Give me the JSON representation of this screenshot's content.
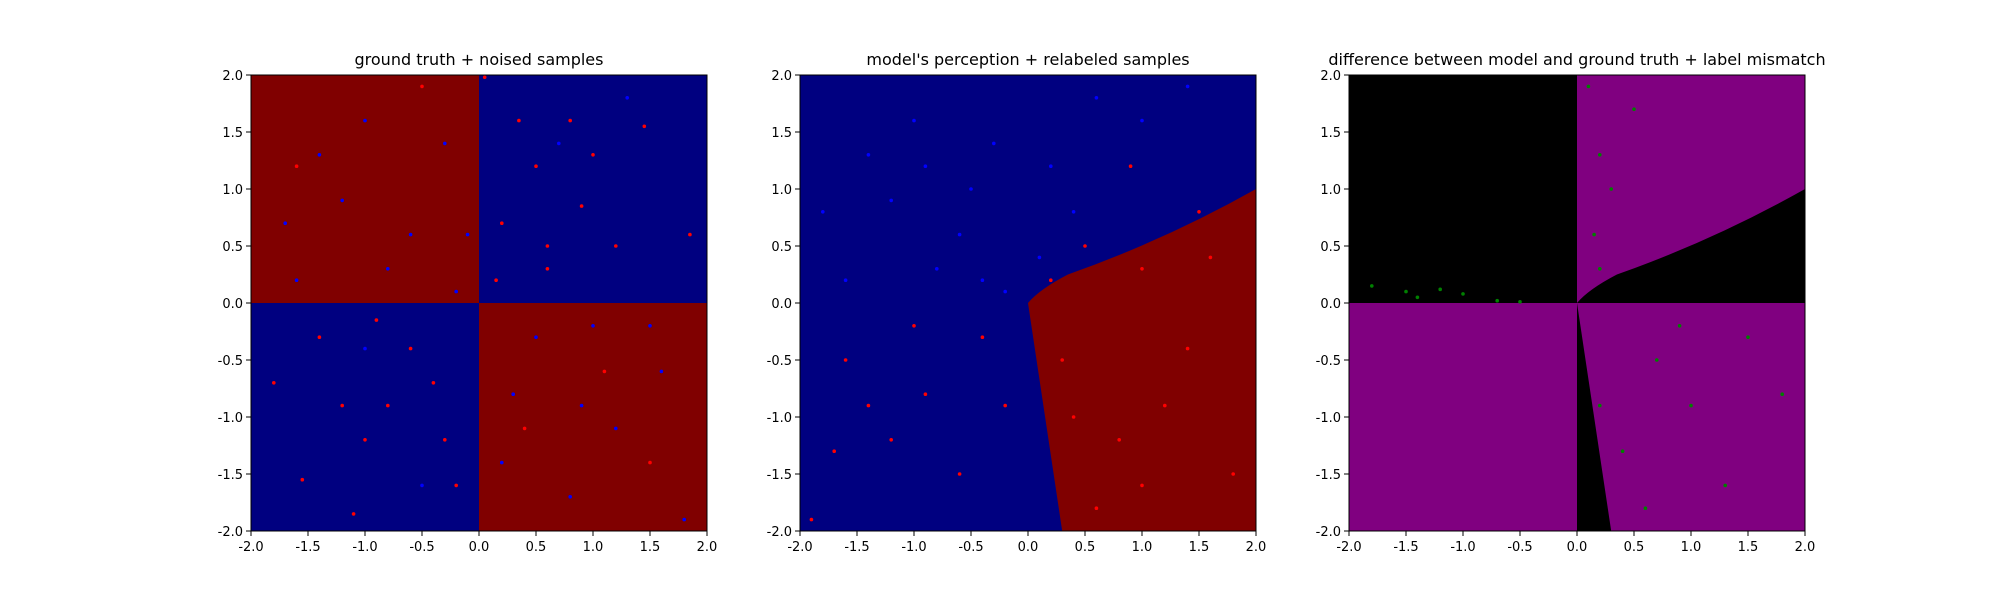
{
  "chart_data": [
    {
      "type": "scatter",
      "title": "ground truth + noised samples",
      "xlim": [
        -2.0,
        2.0
      ],
      "ylim": [
        -2.0,
        2.0
      ],
      "xticks": [
        "-2.0",
        "-1.5",
        "-1.0",
        "-0.5",
        "0.0",
        "0.5",
        "1.0",
        "1.5",
        "2.0"
      ],
      "yticks": [
        "2.0",
        "1.5",
        "1.0",
        "0.5",
        "0.0",
        "-0.5",
        "-1.0",
        "-1.5",
        "-2.0"
      ],
      "background": "ground-truth XOR regions: red where x·y > 0, navy where x·y < 0",
      "region_colors": {
        "positive": "#800000",
        "negative": "#000080"
      },
      "point_colors": {
        "red": "#ff0000",
        "blue": "#0000ff"
      },
      "points": {
        "red": [
          [
            0.05,
            1.98
          ],
          [
            0.5,
            1.2
          ],
          [
            0.8,
            1.6
          ],
          [
            1.45,
            1.55
          ],
          [
            0.2,
            0.7
          ],
          [
            1.2,
            0.5
          ],
          [
            1.85,
            0.6
          ],
          [
            0.6,
            0.3
          ],
          [
            0.9,
            0.85
          ],
          [
            0.35,
            1.6
          ],
          [
            -1.55,
            -1.55
          ],
          [
            -0.8,
            -0.9
          ],
          [
            -1.4,
            -0.3
          ],
          [
            -0.3,
            -1.2
          ],
          [
            -1.1,
            -1.85
          ],
          [
            -0.6,
            -0.4
          ],
          [
            -1.8,
            -0.7
          ],
          [
            -0.2,
            -1.6
          ],
          [
            -1.0,
            -1.2
          ],
          [
            -0.9,
            -0.15
          ],
          [
            -0.5,
            1.9
          ],
          [
            -1.6,
            1.2
          ],
          [
            1.1,
            -0.6
          ],
          [
            0.4,
            -1.1
          ],
          [
            1.5,
            -1.4
          ],
          [
            0.6,
            0.5
          ],
          [
            1.0,
            1.3
          ],
          [
            0.15,
            0.2
          ],
          [
            -1.2,
            -0.9
          ],
          [
            -0.4,
            -0.7
          ]
        ],
        "blue": [
          [
            -1.2,
            0.9
          ],
          [
            -0.8,
            0.3
          ],
          [
            -0.3,
            1.4
          ],
          [
            -1.6,
            0.2
          ],
          [
            -0.6,
            0.6
          ],
          [
            -1.0,
            1.6
          ],
          [
            -0.2,
            0.1
          ],
          [
            -1.4,
            1.3
          ],
          [
            0.5,
            -0.3
          ],
          [
            1.2,
            -1.1
          ],
          [
            0.8,
            -1.7
          ],
          [
            1.6,
            -0.6
          ],
          [
            0.3,
            -0.8
          ],
          [
            1.0,
            -0.2
          ],
          [
            1.8,
            -1.9
          ],
          [
            0.2,
            -1.4
          ],
          [
            0.7,
            1.4
          ],
          [
            -1.0,
            -0.4
          ],
          [
            1.3,
            1.8
          ],
          [
            -0.5,
            -1.6
          ],
          [
            -0.1,
            0.6
          ],
          [
            0.9,
            -0.9
          ],
          [
            -1.7,
            0.7
          ],
          [
            1.5,
            -0.2
          ]
        ]
      }
    },
    {
      "type": "scatter",
      "title": "model's perception + relabeled samples",
      "xlim": [
        -2.0,
        2.0
      ],
      "ylim": [
        -2.0,
        2.0
      ],
      "xticks": [
        "-2.0",
        "-1.5",
        "-1.0",
        "-0.5",
        "0.0",
        "0.5",
        "1.0",
        "1.5",
        "2.0"
      ],
      "yticks": [
        "2.0",
        "1.5",
        "1.0",
        "0.5",
        "0.0",
        "-0.5",
        "-1.0",
        "-1.5",
        "-2.0"
      ],
      "background": "model prediction: red region bounded by curve through (0.0, 0.0), (0.3, -2.0) and (2.0, 1.0); navy elsewhere",
      "region_colors": {
        "positive": "#800000",
        "negative": "#000080"
      },
      "point_colors": {
        "red": "#ff0000",
        "blue": "#0000ff"
      },
      "points": {
        "red": [
          [
            0.5,
            0.5
          ],
          [
            1.0,
            0.3
          ],
          [
            1.5,
            0.8
          ],
          [
            0.3,
            -0.5
          ],
          [
            0.8,
            -1.2
          ],
          [
            1.4,
            -0.4
          ],
          [
            1.8,
            -1.5
          ],
          [
            0.6,
            -1.8
          ],
          [
            1.2,
            -0.9
          ],
          [
            0.2,
            0.2
          ],
          [
            -1.6,
            -0.5
          ],
          [
            -0.9,
            -0.8
          ],
          [
            -0.4,
            -0.3
          ],
          [
            -1.2,
            -1.2
          ],
          [
            -0.6,
            -1.5
          ],
          [
            -1.9,
            -1.9
          ],
          [
            -1.0,
            -0.2
          ],
          [
            -1.4,
            -0.9
          ],
          [
            0.9,
            1.2
          ],
          [
            1.6,
            0.4
          ],
          [
            0.4,
            -1.0
          ],
          [
            1.0,
            -1.6
          ],
          [
            -0.2,
            -0.9
          ],
          [
            -1.7,
            -1.3
          ]
        ],
        "blue": [
          [
            -1.2,
            0.9
          ],
          [
            -0.8,
            0.3
          ],
          [
            -0.3,
            1.4
          ],
          [
            -1.6,
            0.2
          ],
          [
            -0.6,
            0.6
          ],
          [
            -1.0,
            1.6
          ],
          [
            -0.2,
            0.1
          ],
          [
            -1.4,
            1.3
          ],
          [
            0.2,
            1.2
          ],
          [
            0.6,
            1.8
          ],
          [
            1.0,
            1.6
          ],
          [
            -0.5,
            1.0
          ],
          [
            -1.8,
            0.8
          ],
          [
            0.4,
            0.8
          ],
          [
            -0.9,
            1.2
          ],
          [
            0.1,
            0.4
          ],
          [
            1.4,
            1.9
          ],
          [
            -0.4,
            0.2
          ]
        ]
      }
    },
    {
      "type": "scatter",
      "title": "difference between model and ground truth + label mismatch",
      "xlim": [
        -2.0,
        2.0
      ],
      "ylim": [
        -2.0,
        2.0
      ],
      "xticks": [
        "-2.0",
        "-1.5",
        "-1.0",
        "-0.5",
        "0.0",
        "0.5",
        "1.0",
        "1.5",
        "2.0"
      ],
      "yticks": [
        "2.0",
        "1.5",
        "1.0",
        "0.5",
        "0.0",
        "-0.5",
        "-1.0",
        "-1.5",
        "-2.0"
      ],
      "background": "purple where model and ground truth disagree, black where they agree",
      "region_colors": {
        "mismatch": "#800080",
        "match": "#000000"
      },
      "point_colors": {
        "green": "#008000"
      },
      "points": {
        "green": [
          [
            0.1,
            1.9
          ],
          [
            0.2,
            1.3
          ],
          [
            0.15,
            0.6
          ],
          [
            0.3,
            1.0
          ],
          [
            0.5,
            1.7
          ],
          [
            0.2,
            0.3
          ],
          [
            0.7,
            -0.5
          ],
          [
            1.0,
            -0.9
          ],
          [
            1.5,
            -0.3
          ],
          [
            0.4,
            -1.3
          ],
          [
            1.3,
            -1.6
          ],
          [
            0.9,
            -0.2
          ],
          [
            1.8,
            -0.8
          ],
          [
            0.2,
            -0.9
          ],
          [
            0.6,
            -1.8
          ],
          [
            -1.8,
            0.15
          ],
          [
            -1.5,
            0.1
          ],
          [
            -1.2,
            0.12
          ],
          [
            -1.0,
            0.08
          ],
          [
            -0.7,
            0.02
          ],
          [
            -0.5,
            0.01
          ],
          [
            -1.4,
            0.05
          ]
        ]
      }
    }
  ]
}
